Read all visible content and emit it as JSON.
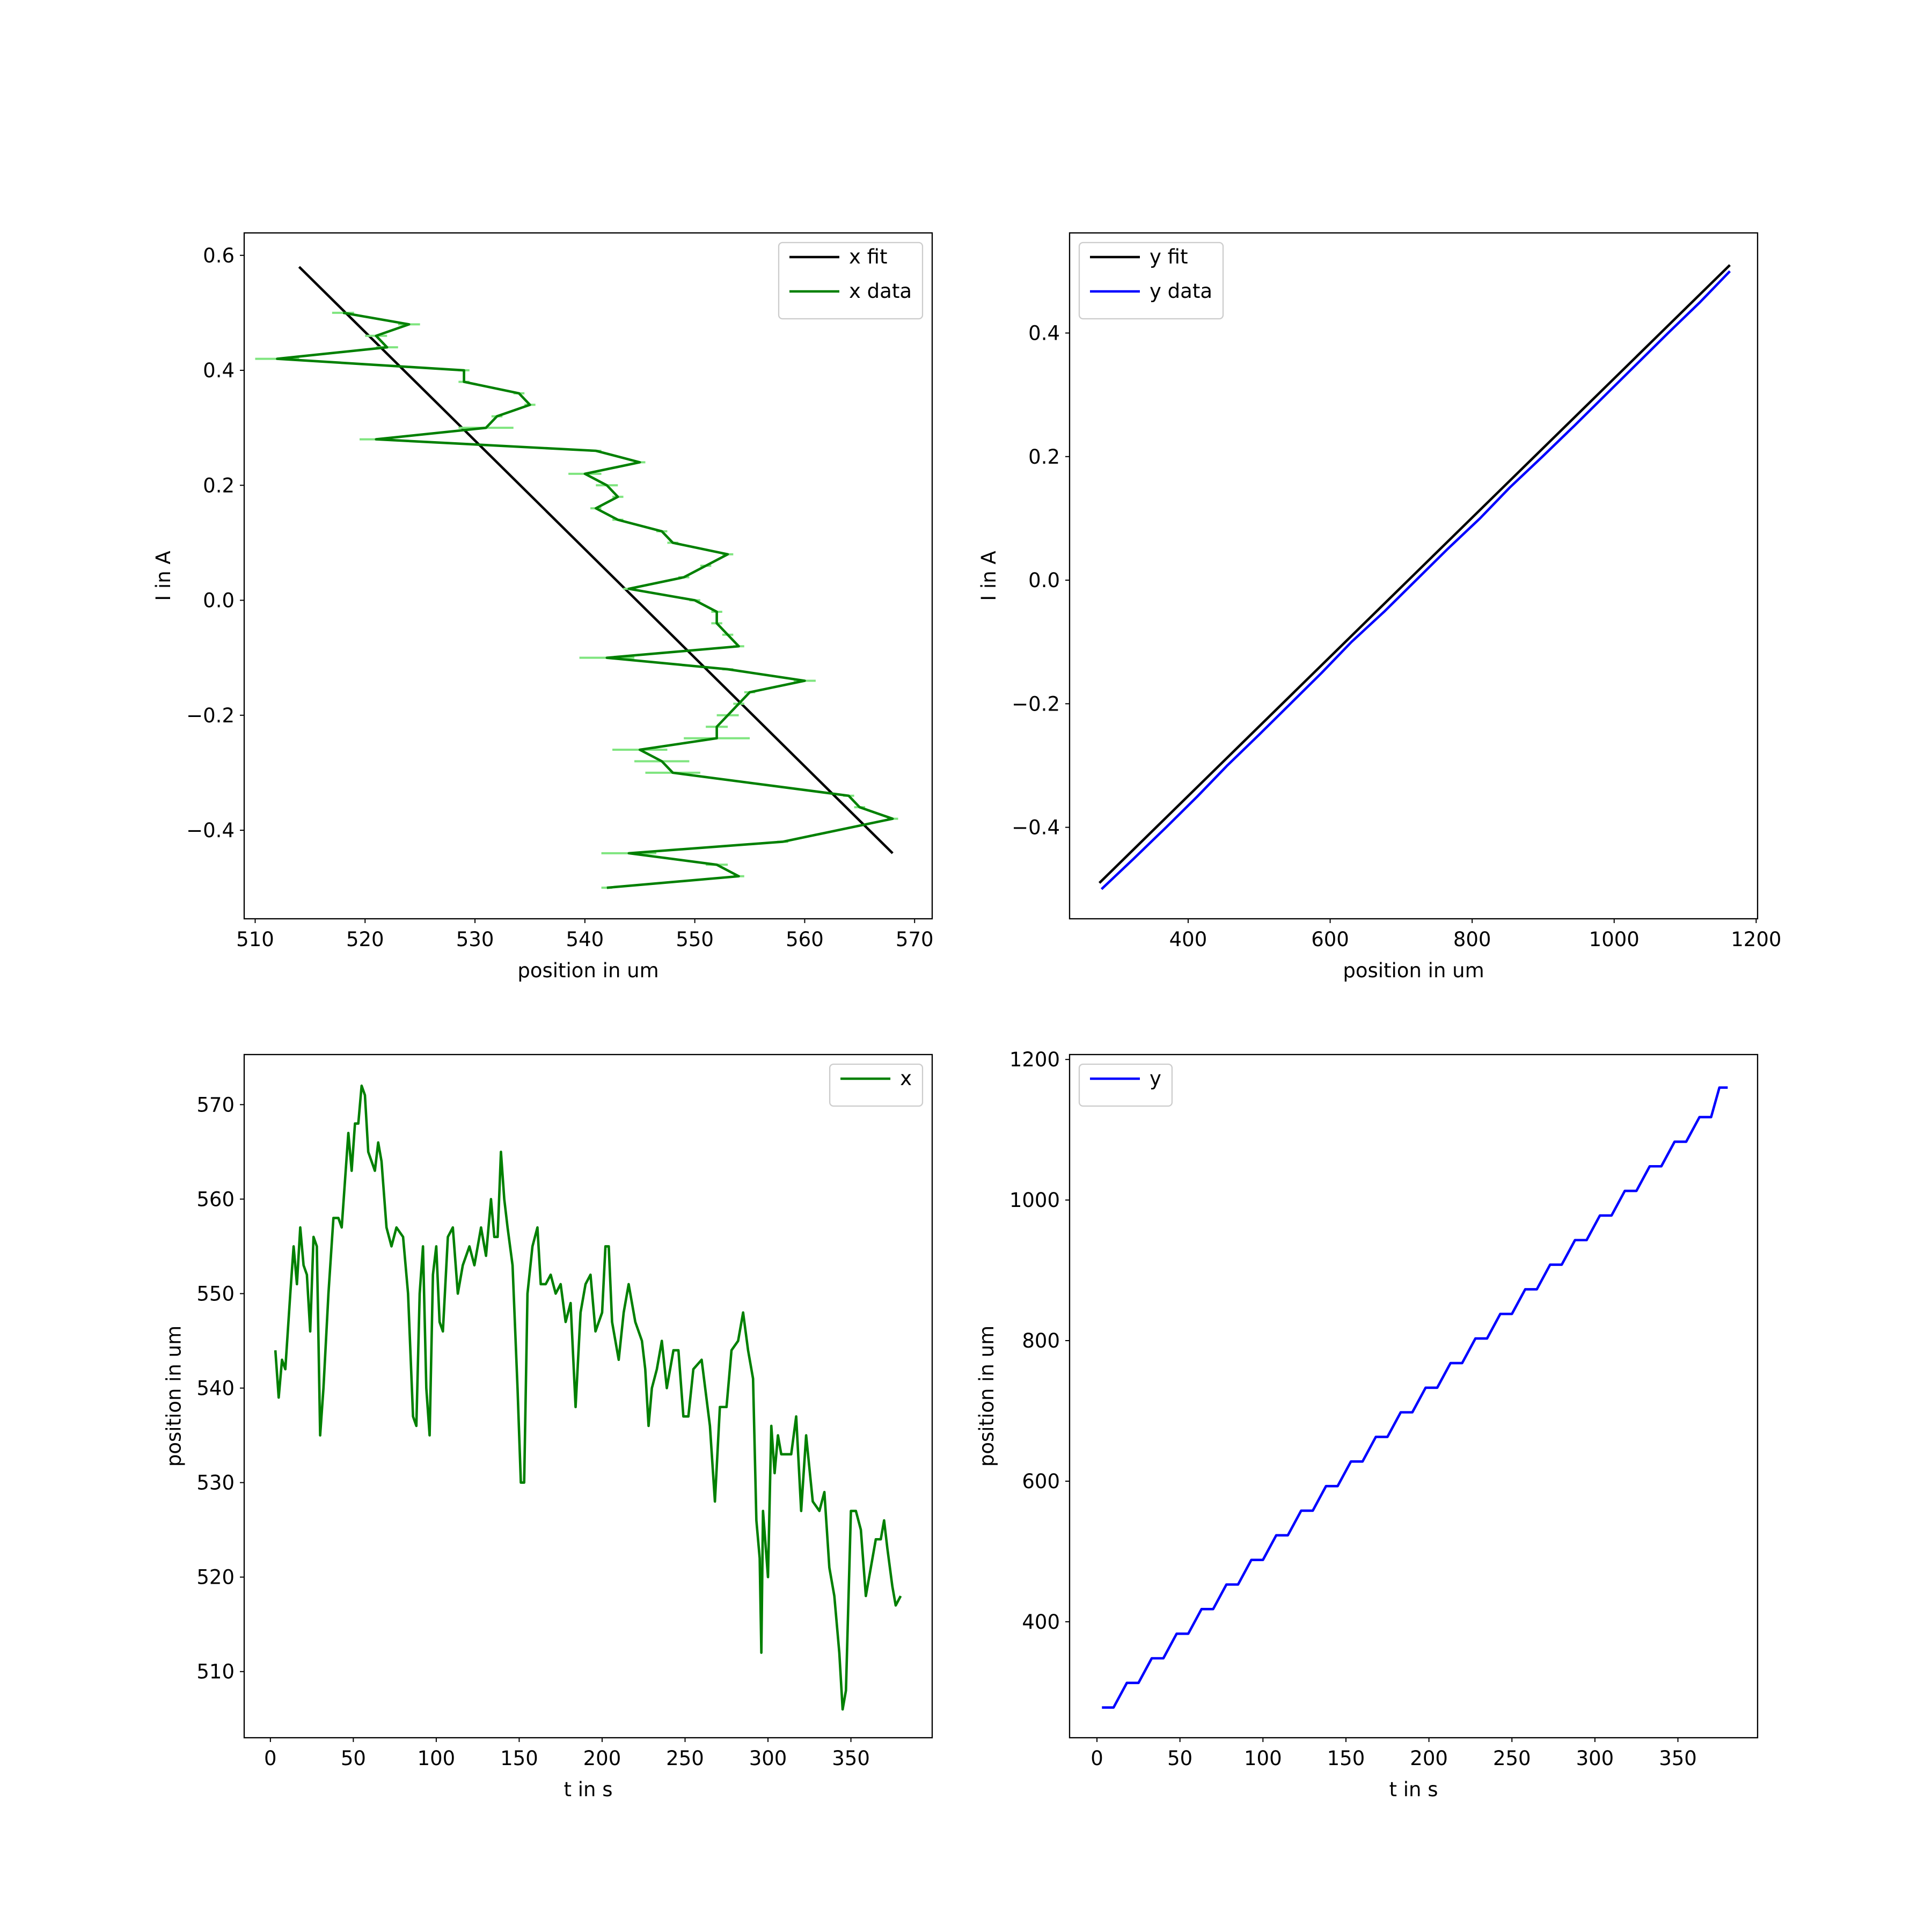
{
  "chart_data": [
    {
      "type": "line",
      "xlabel": "position in um",
      "ylabel": "I in A",
      "legend": "upper right",
      "xlim": [
        509,
        571.6
      ],
      "ylim": [
        -0.554,
        0.639
      ],
      "xticks": [
        510,
        520,
        530,
        540,
        550,
        560,
        570
      ],
      "yticks": [
        {
          "value": -0.4,
          "label": "−0.4"
        },
        {
          "value": -0.2,
          "label": "−0.2"
        },
        {
          "value": 0,
          "label": "0.0"
        },
        0.2,
        0.4,
        0.6
      ],
      "series": [
        {
          "name": "x fit",
          "color": "#000000",
          "x": [
            514,
            568
          ],
          "values": [
            0.58,
            -0.44
          ]
        },
        {
          "name": "x data",
          "color": "#008000",
          "errcolor": "#7fe57f",
          "x": [
            518,
            524,
            521,
            522,
            512,
            529,
            529,
            534,
            535,
            532,
            531,
            521,
            541,
            545,
            540,
            542,
            543,
            541,
            543,
            547,
            548,
            553,
            551,
            549,
            544,
            550,
            552,
            552,
            553,
            554,
            542,
            553,
            560,
            555,
            554,
            553,
            552,
            552,
            545,
            547,
            548,
            564,
            565,
            568,
            558,
            544,
            552,
            554,
            542
          ],
          "values": [
            0.5,
            0.48,
            0.46,
            0.44,
            0.42,
            0.4,
            0.38,
            0.36,
            0.34,
            0.32,
            0.3,
            0.28,
            0.26,
            0.24,
            0.22,
            0.2,
            0.18,
            0.16,
            0.14,
            0.12,
            0.1,
            0.08,
            0.06,
            0.04,
            0.02,
            0,
            -0.02,
            -0.04,
            -0.06,
            -0.08,
            -0.1,
            -0.12,
            -0.14,
            -0.16,
            -0.18,
            -0.2,
            -0.22,
            -0.24,
            -0.26,
            -0.28,
            -0.3,
            -0.34,
            -0.36,
            -0.38,
            -0.42,
            -0.44,
            -0.46,
            -0.48,
            -0.5
          ],
          "xerr": [
            1,
            1,
            1,
            1,
            2,
            0.5,
            0.5,
            0.5,
            0.5,
            0.5,
            2.5,
            1.5,
            0.5,
            0.5,
            1.5,
            1,
            0.5,
            0.5,
            0.5,
            0.5,
            0.5,
            0.5,
            0.5,
            0.5,
            0.5,
            0.5,
            0.5,
            0.5,
            0.5,
            0.5,
            2.5,
            0.5,
            1,
            0.5,
            0.5,
            1,
            1,
            3,
            2.5,
            2.5,
            2.5,
            0.5,
            0.5,
            0.5,
            0.5,
            2.5,
            1,
            0.5,
            0.5
          ]
        }
      ]
    },
    {
      "type": "line",
      "xlabel": "position in um",
      "ylabel": "I in A",
      "legend": "upper left",
      "xlim": [
        233,
        1202
      ],
      "ylim": [
        -0.548,
        0.562
      ],
      "xticks": [
        400,
        600,
        800,
        1000,
        1200
      ],
      "yticks": [
        {
          "value": -0.4,
          "label": "−0.4"
        },
        {
          "value": -0.2,
          "label": "−0.2"
        },
        {
          "value": 0,
          "label": "0.0"
        },
        0.2,
        0.4
      ],
      "series": [
        {
          "name": "y fit",
          "color": "#000000",
          "x": [
            275,
            1163
          ],
          "values": [
            -0.49,
            0.51
          ]
        },
        {
          "name": "y data",
          "color": "#0000ff",
          "x": [
            278,
            324,
            369,
            413,
            455,
            500,
            544,
            588,
            630,
            677,
            721,
            765,
            811,
            853,
            899,
            944,
            988,
            1032,
            1076,
            1121,
            1163
          ],
          "values": [
            -0.5,
            -0.45,
            -0.4,
            -0.35,
            -0.3,
            -0.25,
            -0.2,
            -0.15,
            -0.1,
            -0.05,
            0,
            0.05,
            0.1,
            0.15,
            0.2,
            0.25,
            0.3,
            0.35,
            0.4,
            0.45,
            0.5
          ]
        }
      ]
    },
    {
      "type": "line",
      "xlabel": "t in s",
      "ylabel": "position in um",
      "legend": "upper right",
      "xlim": [
        -15.8,
        399
      ],
      "ylim": [
        503,
        575.3
      ],
      "xticks": [
        0,
        50,
        100,
        150,
        200,
        250,
        300,
        350
      ],
      "yticks": [
        510,
        520,
        530,
        540,
        550,
        560,
        570
      ],
      "series": [
        {
          "name": "x",
          "color": "#008000",
          "x": [
            3,
            5,
            7,
            9,
            12,
            14,
            16,
            18,
            20,
            22,
            24,
            26,
            28,
            30,
            32,
            35,
            38,
            41,
            43,
            45,
            47,
            49,
            51,
            53,
            55,
            57,
            59,
            61,
            63,
            65,
            67,
            70,
            73,
            76,
            80,
            83,
            86,
            88,
            90,
            92,
            94,
            96,
            98,
            100,
            102,
            104,
            107,
            110,
            113,
            116,
            120,
            123,
            127,
            130,
            133,
            135,
            137,
            139,
            141,
            143,
            146,
            149,
            151,
            153,
            155,
            158,
            161,
            163,
            166,
            169,
            172,
            175,
            178,
            181,
            184,
            187,
            190,
            193,
            196,
            200,
            202,
            204,
            206,
            210,
            213,
            216,
            220,
            224,
            226,
            228,
            230,
            233,
            236,
            239,
            243,
            246,
            249,
            252,
            255,
            260,
            265,
            268,
            271,
            275,
            278,
            282,
            285,
            288,
            291,
            293,
            295,
            296,
            297,
            300,
            302,
            304,
            306,
            308,
            311,
            314,
            317,
            320,
            323,
            327,
            331,
            334,
            337,
            340,
            343,
            345,
            347,
            350,
            353,
            356,
            359,
            362,
            365,
            368,
            370,
            372,
            375,
            377,
            380
          ],
          "values": [
            544,
            539,
            543,
            542,
            550,
            555,
            551,
            557,
            553,
            552,
            546,
            556,
            555,
            535,
            540,
            550,
            558,
            558,
            557,
            562,
            567,
            563,
            568,
            568,
            572,
            571,
            565,
            564,
            563,
            566,
            564,
            557,
            555,
            557,
            556,
            550,
            537,
            536,
            550,
            555,
            540,
            535,
            552,
            555,
            547,
            546,
            556,
            557,
            550,
            553,
            555,
            553,
            557,
            554,
            560,
            556,
            556,
            565,
            560,
            557,
            553,
            540,
            530,
            530,
            550,
            555,
            557,
            551,
            551,
            552,
            550,
            551,
            547,
            549,
            538,
            548,
            551,
            552,
            546,
            548,
            555,
            555,
            547,
            543,
            548,
            551,
            547,
            545,
            542,
            536,
            540,
            542,
            545,
            540,
            544,
            544,
            537,
            537,
            542,
            543,
            536,
            528,
            538,
            538,
            544,
            545,
            548,
            544,
            541,
            526,
            522,
            512,
            527,
            520,
            536,
            531,
            535,
            533,
            533,
            533,
            537,
            527,
            535,
            528,
            527,
            529,
            521,
            518,
            512,
            506,
            508,
            527,
            527,
            525,
            518,
            521,
            524,
            524,
            526,
            523,
            519,
            517,
            518
          ]
        }
      ]
    },
    {
      "type": "line",
      "xlabel": "t in s",
      "ylabel": "position in um",
      "legend": "upper left",
      "xlim": [
        -16.5,
        398
      ],
      "ylim": [
        235,
        1207
      ],
      "xticks": [
        0,
        50,
        100,
        150,
        200,
        250,
        300,
        350
      ],
      "yticks": [
        400,
        600,
        800,
        1000,
        1200
      ],
      "series": [
        {
          "name": "y",
          "color": "#0000ff",
          "x": [
            3,
            10,
            18,
            25,
            33,
            40,
            48,
            55,
            63,
            70,
            78,
            85,
            93,
            100,
            108,
            115,
            123,
            130,
            138,
            145,
            153,
            160,
            168,
            175,
            183,
            190,
            198,
            205,
            213,
            220,
            228,
            235,
            243,
            250,
            258,
            265,
            273,
            280,
            288,
            295,
            303,
            310,
            318,
            325,
            333,
            340,
            348,
            355,
            363,
            370,
            375,
            380
          ],
          "values": [
            278,
            278,
            313,
            313,
            348,
            348,
            383,
            383,
            418,
            418,
            453,
            453,
            488,
            488,
            523,
            523,
            558,
            558,
            593,
            593,
            628,
            628,
            663,
            663,
            698,
            698,
            733,
            733,
            768,
            768,
            803,
            803,
            838,
            838,
            873,
            873,
            908,
            908,
            943,
            943,
            978,
            978,
            1013,
            1013,
            1048,
            1048,
            1083,
            1083,
            1118,
            1118,
            1160,
            1160
          ]
        }
      ]
    }
  ]
}
